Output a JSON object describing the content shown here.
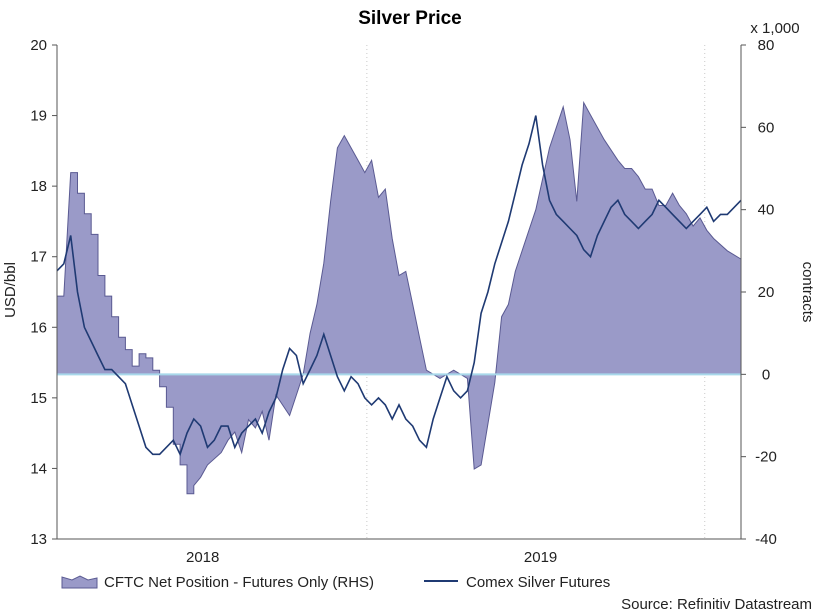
{
  "chart_data": {
    "type": "line",
    "title": "Silver Price",
    "left_axis": {
      "label": "USD/bbl",
      "ylim": [
        13,
        20
      ],
      "ticks": [
        "13",
        "14",
        "15",
        "16",
        "17",
        "18",
        "19",
        "20"
      ]
    },
    "right_axis": {
      "label": "contracts",
      "multiplier_label": "x 1,000",
      "ylim": [
        -40,
        80
      ],
      "ticks": [
        "-40",
        "-20",
        "0",
        "20",
        "40",
        "60",
        "80"
      ]
    },
    "x_axis": {
      "labels": [
        "2018",
        "2019"
      ]
    },
    "legend": {
      "position": "bottom-left",
      "area_label": "CFTC Net Position - Futures Only (RHS)",
      "line_label": "Comex Silver Futures"
    },
    "source": "Source: Refinitiv Datastream",
    "colors": {
      "area_fill": "#9a9ac8",
      "area_stroke": "#5a5a92",
      "line": "#1f3a73",
      "zero_line": "#a8d8ea",
      "grid": "#c8c8c8",
      "axis": "#555555"
    },
    "series": [
      {
        "name": "CFTC Net Position - Futures Only (RHS)",
        "axis": "right",
        "x": [
          0,
          1,
          2,
          3,
          3,
          4,
          4,
          5,
          5,
          6,
          6,
          7,
          7,
          8,
          8,
          9,
          9,
          10,
          10,
          11,
          11,
          12,
          12,
          13,
          13,
          14,
          14,
          15,
          15,
          16,
          16,
          17,
          17,
          18,
          18,
          19,
          19,
          20,
          20,
          21,
          22,
          24,
          25,
          26,
          27,
          28,
          29,
          30,
          31,
          32,
          34,
          36,
          37,
          38,
          39,
          40,
          41,
          42,
          43,
          44,
          45,
          46,
          47,
          48,
          49,
          50,
          51,
          52,
          53,
          54,
          56,
          58,
          60,
          61,
          62,
          64,
          65,
          66,
          67,
          68,
          70,
          72,
          74,
          75,
          76,
          77,
          78,
          80,
          82,
          83,
          84,
          85,
          86,
          87,
          88,
          89,
          90,
          91,
          92,
          93,
          94,
          95,
          96,
          98,
          100
        ],
        "y": [
          19,
          19,
          49,
          49,
          44,
          44,
          39,
          39,
          34,
          34,
          24,
          24,
          19,
          19,
          14,
          14,
          9,
          9,
          6,
          6,
          2,
          2,
          5,
          5,
          4,
          4,
          1,
          1,
          -3,
          -3,
          -8,
          -8,
          -17,
          -17,
          -22,
          -22,
          -29,
          -29,
          -27,
          -25,
          -22,
          -19,
          -16,
          -14,
          -19,
          -11,
          -13,
          -9,
          -16,
          -5,
          -10,
          0,
          10,
          17,
          27,
          42,
          55,
          58,
          55,
          52,
          49,
          52,
          43,
          45,
          33,
          24,
          25,
          17,
          9,
          1,
          -1,
          1,
          -1,
          -23,
          -22,
          -2,
          14,
          17,
          25,
          30,
          40,
          55,
          65,
          57,
          42,
          66,
          63,
          57,
          52,
          50,
          50,
          48,
          45,
          45,
          41,
          41,
          44,
          41,
          39,
          36,
          38,
          35,
          33,
          30,
          28
        ]
      },
      {
        "name": "Comex Silver Futures",
        "axis": "left",
        "x": [
          0,
          1,
          2,
          3,
          4,
          5,
          6,
          7,
          8,
          9,
          10,
          11,
          12,
          13,
          14,
          15,
          16,
          17,
          18,
          19,
          20,
          21,
          22,
          23,
          24,
          25,
          26,
          27,
          28,
          29,
          30,
          31,
          32,
          33,
          34,
          35,
          36,
          37,
          38,
          39,
          40,
          41,
          42,
          43,
          44,
          45,
          46,
          47,
          48,
          49,
          50,
          51,
          52,
          53,
          54,
          55,
          56,
          57,
          58,
          59,
          60,
          61,
          62,
          63,
          64,
          65,
          66,
          67,
          68,
          69,
          70,
          71,
          72,
          73,
          74,
          75,
          76,
          77,
          78,
          79,
          80,
          81,
          82,
          83,
          84,
          85,
          86,
          87,
          88,
          89,
          90,
          91,
          92,
          93,
          94,
          95,
          96,
          97,
          98,
          99,
          100
        ],
        "y": [
          16.8,
          16.9,
          17.3,
          16.5,
          16.0,
          15.8,
          15.6,
          15.4,
          15.4,
          15.3,
          15.2,
          14.9,
          14.6,
          14.3,
          14.2,
          14.2,
          14.3,
          14.4,
          14.2,
          14.5,
          14.7,
          14.6,
          14.3,
          14.4,
          14.6,
          14.6,
          14.3,
          14.5,
          14.6,
          14.7,
          14.5,
          14.8,
          15.0,
          15.4,
          15.7,
          15.6,
          15.2,
          15.4,
          15.6,
          15.9,
          15.6,
          15.3,
          15.1,
          15.3,
          15.2,
          15.0,
          14.9,
          15.0,
          14.9,
          14.7,
          14.9,
          14.7,
          14.6,
          14.4,
          14.3,
          14.7,
          15.0,
          15.3,
          15.1,
          15.0,
          15.1,
          15.5,
          16.2,
          16.5,
          16.9,
          17.2,
          17.5,
          17.9,
          18.3,
          18.6,
          19.0,
          18.3,
          17.8,
          17.6,
          17.5,
          17.4,
          17.3,
          17.1,
          17.0,
          17.3,
          17.5,
          17.7,
          17.8,
          17.6,
          17.5,
          17.4,
          17.5,
          17.6,
          17.8,
          17.7,
          17.6,
          17.5,
          17.4,
          17.5,
          17.6,
          17.7,
          17.5,
          17.6,
          17.6,
          17.7,
          17.8
        ]
      }
    ]
  }
}
